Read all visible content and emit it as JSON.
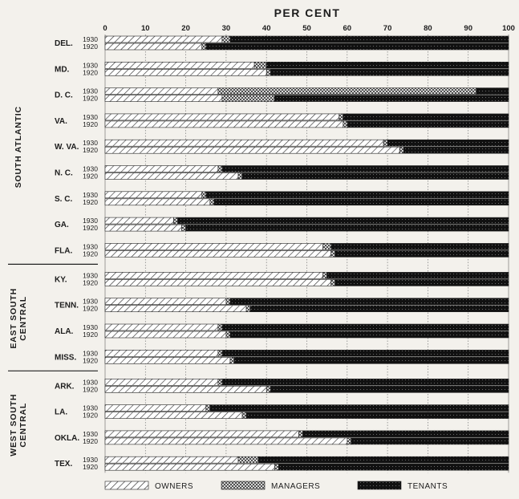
{
  "chart_data": {
    "type": "bar",
    "stacked": true,
    "orientation": "horizontal",
    "title": "PER CENT",
    "xlim": [
      0,
      100
    ],
    "x_ticks": [
      "0",
      "10",
      "20",
      "30",
      "40",
      "50",
      "60",
      "70",
      "80",
      "90",
      "100"
    ],
    "legend": [
      "OWNERS",
      "MANAGERS",
      "TENANTS"
    ],
    "legend_position": "bottom",
    "colors": {
      "owners": "#ffffff",
      "managers": "#9a9a9a",
      "tenants": "#111111",
      "stroke": "#222222"
    },
    "regions": [
      {
        "label": "SOUTH ATLANTIC",
        "states": [
          {
            "label": "DEL.",
            "rows": [
              {
                "year": "1930",
                "owners": 29,
                "managers": 2,
                "tenants": 69
              },
              {
                "year": "1920",
                "owners": 24,
                "managers": 1,
                "tenants": 75
              }
            ]
          },
          {
            "label": "MD.",
            "rows": [
              {
                "year": "1930",
                "owners": 37,
                "managers": 3,
                "tenants": 60
              },
              {
                "year": "1920",
                "owners": 40,
                "managers": 1,
                "tenants": 59
              }
            ]
          },
          {
            "label": "D. C.",
            "rows": [
              {
                "year": "1930",
                "owners": 28,
                "managers": 64,
                "tenants": 8
              },
              {
                "year": "1920",
                "owners": 29,
                "managers": 13,
                "tenants": 58
              }
            ]
          },
          {
            "label": "VA.",
            "rows": [
              {
                "year": "1930",
                "owners": 58,
                "managers": 1,
                "tenants": 41
              },
              {
                "year": "1920",
                "owners": 59,
                "managers": 1,
                "tenants": 40
              }
            ]
          },
          {
            "label": "W. VA.",
            "rows": [
              {
                "year": "1930",
                "owners": 69,
                "managers": 1,
                "tenants": 30
              },
              {
                "year": "1920",
                "owners": 73,
                "managers": 1,
                "tenants": 26
              }
            ]
          },
          {
            "label": "N. C.",
            "rows": [
              {
                "year": "1930",
                "owners": 28,
                "managers": 1,
                "tenants": 71
              },
              {
                "year": "1920",
                "owners": 33,
                "managers": 1,
                "tenants": 66
              }
            ]
          },
          {
            "label": "S. C.",
            "rows": [
              {
                "year": "1930",
                "owners": 24,
                "managers": 1,
                "tenants": 75
              },
              {
                "year": "1920",
                "owners": 26,
                "managers": 1,
                "tenants": 73
              }
            ]
          },
          {
            "label": "GA.",
            "rows": [
              {
                "year": "1930",
                "owners": 17,
                "managers": 1,
                "tenants": 82
              },
              {
                "year": "1920",
                "owners": 19,
                "managers": 1,
                "tenants": 80
              }
            ]
          },
          {
            "label": "FLA.",
            "rows": [
              {
                "year": "1930",
                "owners": 54,
                "managers": 2,
                "tenants": 44
              },
              {
                "year": "1920",
                "owners": 56,
                "managers": 1,
                "tenants": 43
              }
            ]
          }
        ]
      },
      {
        "label": "EAST SOUTH CENTRAL",
        "states": [
          {
            "label": "KY.",
            "rows": [
              {
                "year": "1930",
                "owners": 54,
                "managers": 1,
                "tenants": 45
              },
              {
                "year": "1920",
                "owners": 56,
                "managers": 1,
                "tenants": 43
              }
            ]
          },
          {
            "label": "TENN.",
            "rows": [
              {
                "year": "1930",
                "owners": 30,
                "managers": 1,
                "tenants": 69
              },
              {
                "year": "1920",
                "owners": 35,
                "managers": 1,
                "tenants": 64
              }
            ]
          },
          {
            "label": "ALA.",
            "rows": [
              {
                "year": "1930",
                "owners": 28,
                "managers": 1,
                "tenants": 71
              },
              {
                "year": "1920",
                "owners": 30,
                "managers": 1,
                "tenants": 69
              }
            ]
          },
          {
            "label": "MISS.",
            "rows": [
              {
                "year": "1930",
                "owners": 28,
                "managers": 1,
                "tenants": 71
              },
              {
                "year": "1920",
                "owners": 31,
                "managers": 1,
                "tenants": 68
              }
            ]
          }
        ]
      },
      {
        "label": "WEST SOUTH CENTRAL",
        "states": [
          {
            "label": "ARK.",
            "rows": [
              {
                "year": "1930",
                "owners": 28,
                "managers": 1,
                "tenants": 71
              },
              {
                "year": "1920",
                "owners": 40,
                "managers": 1,
                "tenants": 59
              }
            ]
          },
          {
            "label": "LA.",
            "rows": [
              {
                "year": "1930",
                "owners": 25,
                "managers": 1,
                "tenants": 74
              },
              {
                "year": "1920",
                "owners": 34,
                "managers": 1,
                "tenants": 65
              }
            ]
          },
          {
            "label": "OKLA.",
            "rows": [
              {
                "year": "1930",
                "owners": 48,
                "managers": 1,
                "tenants": 51
              },
              {
                "year": "1920",
                "owners": 60,
                "managers": 1,
                "tenants": 39
              }
            ]
          },
          {
            "label": "TEX.",
            "rows": [
              {
                "year": "1930",
                "owners": 33,
                "managers": 5,
                "tenants": 62
              },
              {
                "year": "1920",
                "owners": 42,
                "managers": 1,
                "tenants": 57
              }
            ]
          }
        ]
      }
    ]
  }
}
